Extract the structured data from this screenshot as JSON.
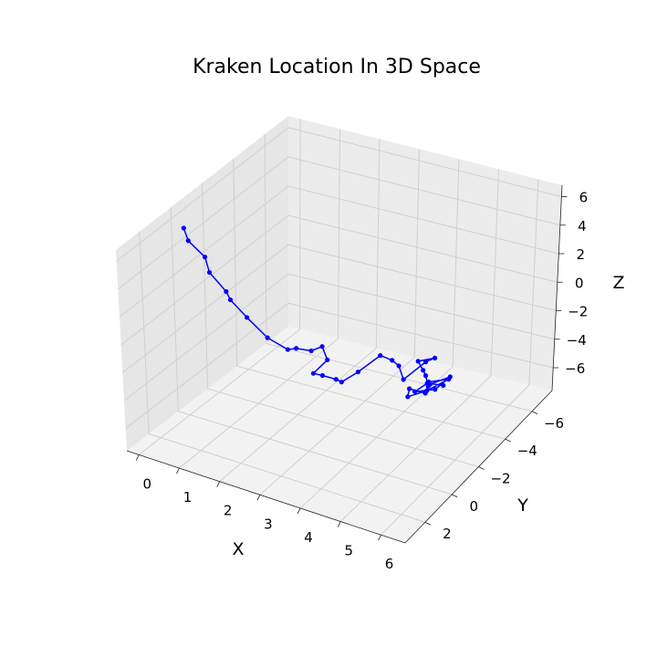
{
  "chart_data": {
    "type": "line",
    "projection": "3d",
    "title": "Kraken Location In 3D Space",
    "xlabel": "X",
    "ylabel": "Y",
    "zlabel": "Z",
    "xlim": [
      -0.3,
      6.6
    ],
    "ylim": [
      -7.5,
      3.5
    ],
    "zlim": [
      -7.6,
      6.8
    ],
    "xticks": [
      0,
      1,
      2,
      3,
      4,
      5,
      6
    ],
    "yticks": [
      2,
      0,
      -2,
      -4,
      -6
    ],
    "zticks": [
      6,
      4,
      2,
      0,
      -2,
      -4,
      -6
    ],
    "grid": true,
    "series": [
      {
        "color": "#0000ff",
        "marker": "circle",
        "x": [
          0.0,
          0.1,
          0.5,
          0.6,
          1.0,
          1.1,
          1.5,
          2.0,
          2.5,
          2.6,
          2.9,
          3.1,
          3.3,
          3.2,
          3.5,
          3.8,
          3.9,
          3.6,
          3.8,
          4.1,
          4.2,
          4.6,
          4.7,
          5.0,
          5.1,
          5.4,
          5.5,
          5.7,
          5.7,
          5.2,
          5.3,
          5.6,
          5.8,
          5.3,
          5.4,
          5.7,
          5.6,
          5.2,
          5.3,
          5.6
        ],
        "y": [
          0.0,
          0.0,
          0.0,
          0.0,
          0.0,
          0.0,
          0.0,
          0.0,
          0.0,
          -0.3,
          -0.5,
          -0.7,
          -0.5,
          0.2,
          0.4,
          0.3,
          0.2,
          -1.8,
          -2.8,
          -2.8,
          -3.0,
          -2.2,
          -3.5,
          -3.3,
          -1.8,
          -1.3,
          -1.2,
          -0.8,
          -0.6,
          -0.9,
          -0.5,
          -1.0,
          -2.0,
          -2.0,
          -1.8,
          -2.4,
          -1.6,
          -1.3,
          -1.9,
          -2.2
        ],
        "z": [
          5.6,
          4.8,
          4.0,
          3.0,
          2.0,
          1.5,
          0.6,
          -0.4,
          -0.8,
          -0.9,
          -1.0,
          -0.7,
          -1.3,
          -1.7,
          -1.4,
          -1.5,
          -1.7,
          -3.1,
          -2.7,
          -2.8,
          -3.3,
          -3.2,
          -3.1,
          -2.4,
          -1.1,
          -1.0,
          -1.2,
          -1.4,
          -1.7,
          -2.1,
          -2.2,
          -2.0,
          -2.0,
          -2.6,
          -2.5,
          -2.3,
          -2.5,
          -2.7,
          -2.6,
          -2.8
        ]
      }
    ]
  }
}
